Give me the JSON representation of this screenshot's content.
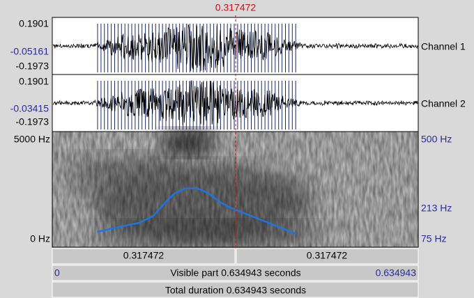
{
  "cursor": {
    "time": "0.317472"
  },
  "channels": [
    {
      "max": "0.1901",
      "value": "-0.05161",
      "min": "-0.1973",
      "name": "Channel 1"
    },
    {
      "max": "0.1901",
      "value": "-0.03415",
      "min": "-0.1973",
      "name": "Channel 2"
    }
  ],
  "spectrogram": {
    "freq_max": "5000 Hz",
    "freq_min": "0 Hz",
    "pitch_max": "500 Hz",
    "pitch_value": "213 Hz",
    "pitch_min": "75 Hz"
  },
  "bars": {
    "left_part": "0.317472",
    "right_part": "0.317472",
    "visible_start": "0",
    "visible_label": "Visible part 0.634943 seconds",
    "visible_end": "0.634943",
    "total": "Total duration 0.634943 seconds"
  }
}
